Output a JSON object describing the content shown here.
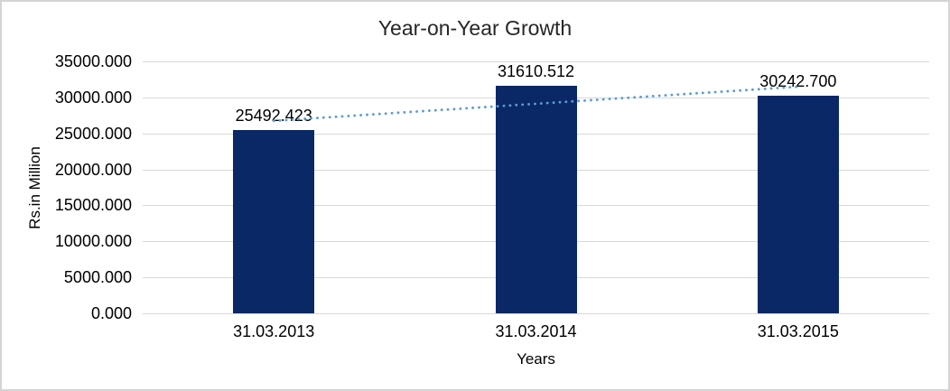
{
  "chart_data": {
    "type": "bar",
    "title": "Year-on-Year Growth",
    "xlabel": "Years",
    "ylabel": "Rs.in Million",
    "categories": [
      "31.03.2013",
      "31.03.2014",
      "31.03.2015"
    ],
    "values": [
      25492.423,
      31610.512,
      30242.7
    ],
    "data_labels": [
      "25492.423",
      "31610.512",
      "30242.700"
    ],
    "y_tick_labels": [
      "0.000",
      "5000.000",
      "10000.000",
      "15000.000",
      "20000.000",
      "25000.000",
      "30000.000",
      "35000.000"
    ],
    "ylim": [
      0,
      35000
    ],
    "grid": "horizontal",
    "legend": "none",
    "trendline": {
      "type": "linear",
      "style": "dotted",
      "color": "#5B9BD5"
    },
    "colors": {
      "bar": "#0A2866",
      "gridline": "#D9D9D9",
      "text": "#000000",
      "title": "#262626",
      "frame_border": "#D4D4D4",
      "background": "#FFFFFF"
    }
  }
}
